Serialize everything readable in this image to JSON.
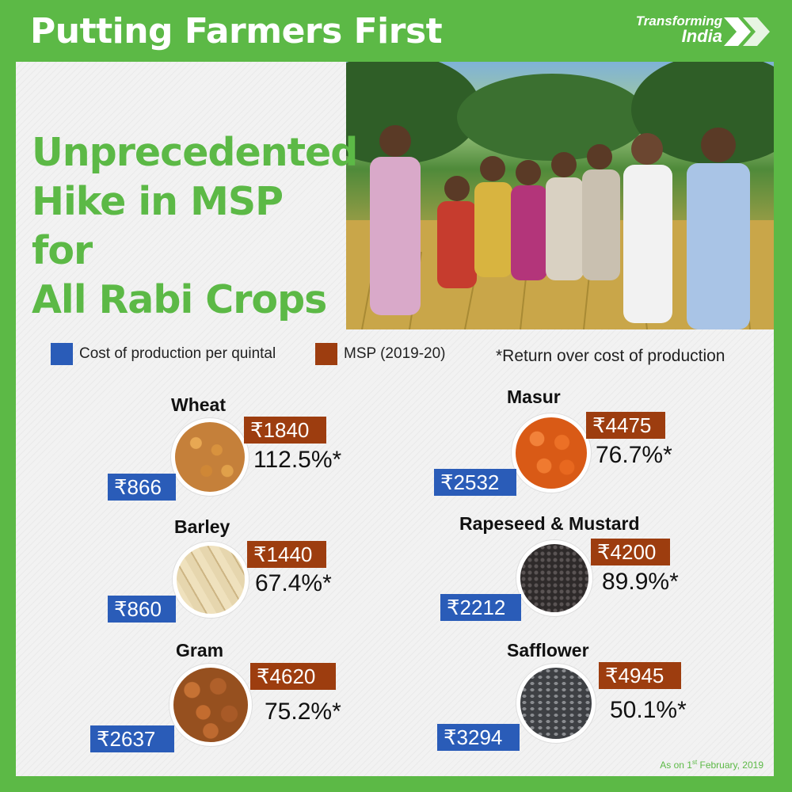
{
  "header": {
    "title": "Putting Farmers First",
    "brand_line1": "Transforming",
    "brand_line2": "India"
  },
  "headline": [
    "Unprecedented",
    "Hike in MSP for",
    "All Rabi Crops"
  ],
  "legend": {
    "cost_label": "Cost of production per quintal",
    "msp_label": "MSP (2019-20)",
    "note": "*Return over cost of production",
    "cost_color": "#2a5cb8",
    "msp_color": "#9d3d0f"
  },
  "crops": [
    {
      "name": "Wheat",
      "msp": "₹1840",
      "cost": "₹866",
      "return": "112.5%*",
      "grain_color": "#c9853a"
    },
    {
      "name": "Barley",
      "msp": "₹1440",
      "cost": "₹860",
      "return": "67.4%*",
      "grain_color": "#dcc89a"
    },
    {
      "name": "Gram",
      "msp": "₹4620",
      "cost": "₹2637",
      "return": "75.2%*",
      "grain_color": "#b5602a"
    },
    {
      "name": "Masur",
      "msp": "₹4475",
      "cost": "₹2532",
      "return": "76.7%*",
      "grain_color": "#e0601d"
    },
    {
      "name": "Rapeseed & Mustard",
      "msp": "₹4200",
      "cost": "₹2212",
      "return": "89.9%*",
      "grain_color": "#3a3636"
    },
    {
      "name": "Safflower",
      "msp": "₹4945",
      "cost": "₹3294",
      "return": "50.1%*",
      "grain_color": "#55575a"
    }
  ],
  "footnote": {
    "prefix": "As on 1",
    "sup": "st",
    "suffix": " February, 2019"
  }
}
